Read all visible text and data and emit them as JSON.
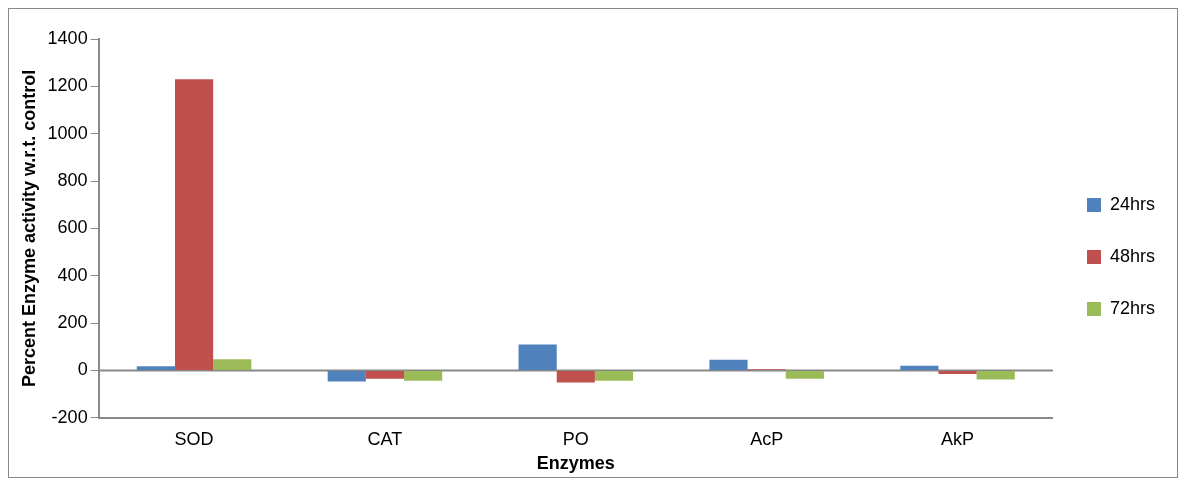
{
  "chart_data": {
    "type": "bar",
    "xlabel": "Enzymes",
    "ylabel": "Percent Enzyme activity w.r.t. control",
    "categories": [
      "SOD",
      "CAT",
      "PO",
      "AcP",
      "AkP"
    ],
    "series": [
      {
        "name": "24hrs",
        "color": "#4f81bd",
        "values": [
          18,
          -47,
          110,
          45,
          20
        ]
      },
      {
        "name": "48hrs",
        "color": "#c0504d",
        "values": [
          1230,
          -35,
          -51,
          5,
          -15
        ]
      },
      {
        "name": "72hrs",
        "color": "#9bbb59",
        "values": [
          47,
          -43,
          -43,
          -35,
          -38
        ]
      }
    ],
    "ylim": [
      -200,
      1400
    ],
    "yticks": [
      -200,
      0,
      200,
      400,
      600,
      800,
      1000,
      1200,
      1400
    ],
    "legend": "right"
  }
}
